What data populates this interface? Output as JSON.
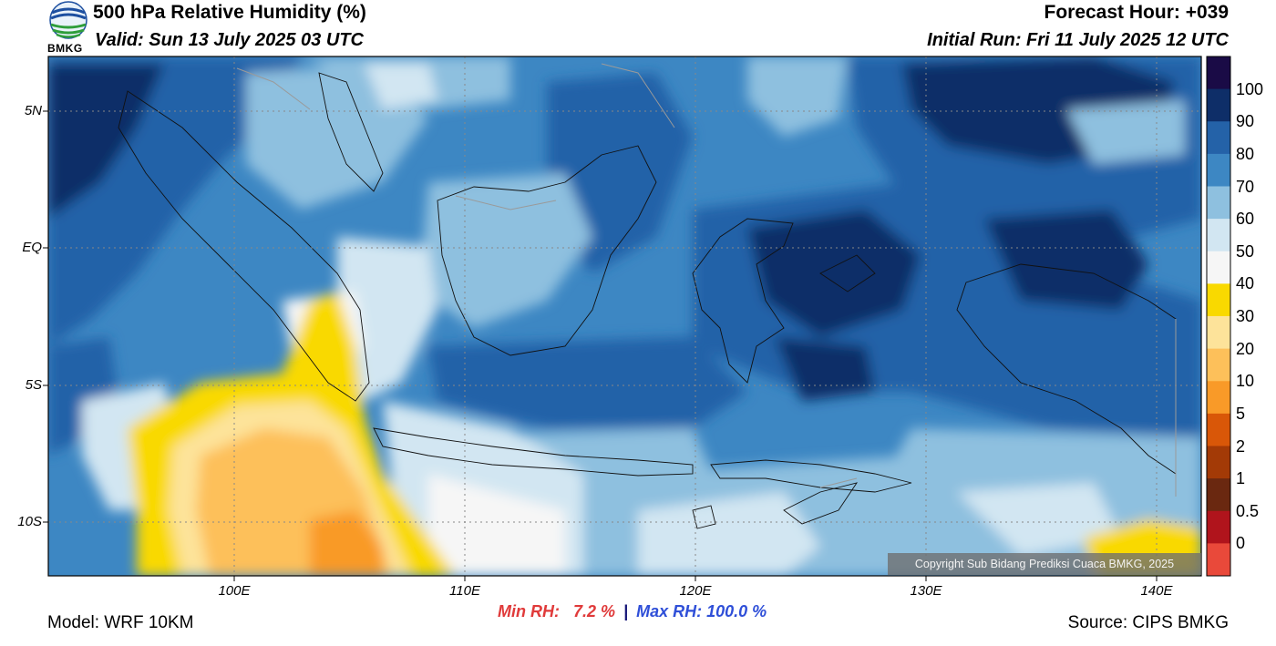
{
  "header": {
    "logo_text": "BMKG",
    "title": "500 hPa Relative Humidity (%)",
    "valid": "Valid: Sun 13 July 2025 03 UTC",
    "forecast_hour": "Forecast Hour: +039",
    "initial_run": "Initial Run: Fri 11 July 2025 12 UTC"
  },
  "map": {
    "lat_labels": [
      "5N",
      "EQ",
      "5S",
      "10S"
    ],
    "lon_labels": [
      "100E",
      "110E",
      "120E",
      "130E",
      "140E"
    ],
    "copyright": "Copyright Sub Bidang Prediksi Cuaca BMKG, 2025"
  },
  "colorbar": {
    "labels": [
      "100",
      "90",
      "80",
      "70",
      "60",
      "50",
      "40",
      "30",
      "20",
      "10",
      "5",
      "2",
      "1",
      "0.5",
      "0"
    ],
    "colors": [
      "#1a0b46",
      "#0e2e68",
      "#2462a8",
      "#3d87c3",
      "#8ec0df",
      "#d2e6f2",
      "#f6f6f6",
      "#f9d900",
      "#fde39a",
      "#fdc05a",
      "#f99a28",
      "#d95708",
      "#a33a06",
      "#6a2810",
      "#b0141c",
      "#e9493a"
    ]
  },
  "stats": {
    "min": "Min RH:   7.2 %",
    "separator": "|",
    "max": "Max RH: 100.0 %"
  },
  "footer": {
    "model": "Model: WRF 10KM",
    "source": "Source: CIPS BMKG"
  }
}
